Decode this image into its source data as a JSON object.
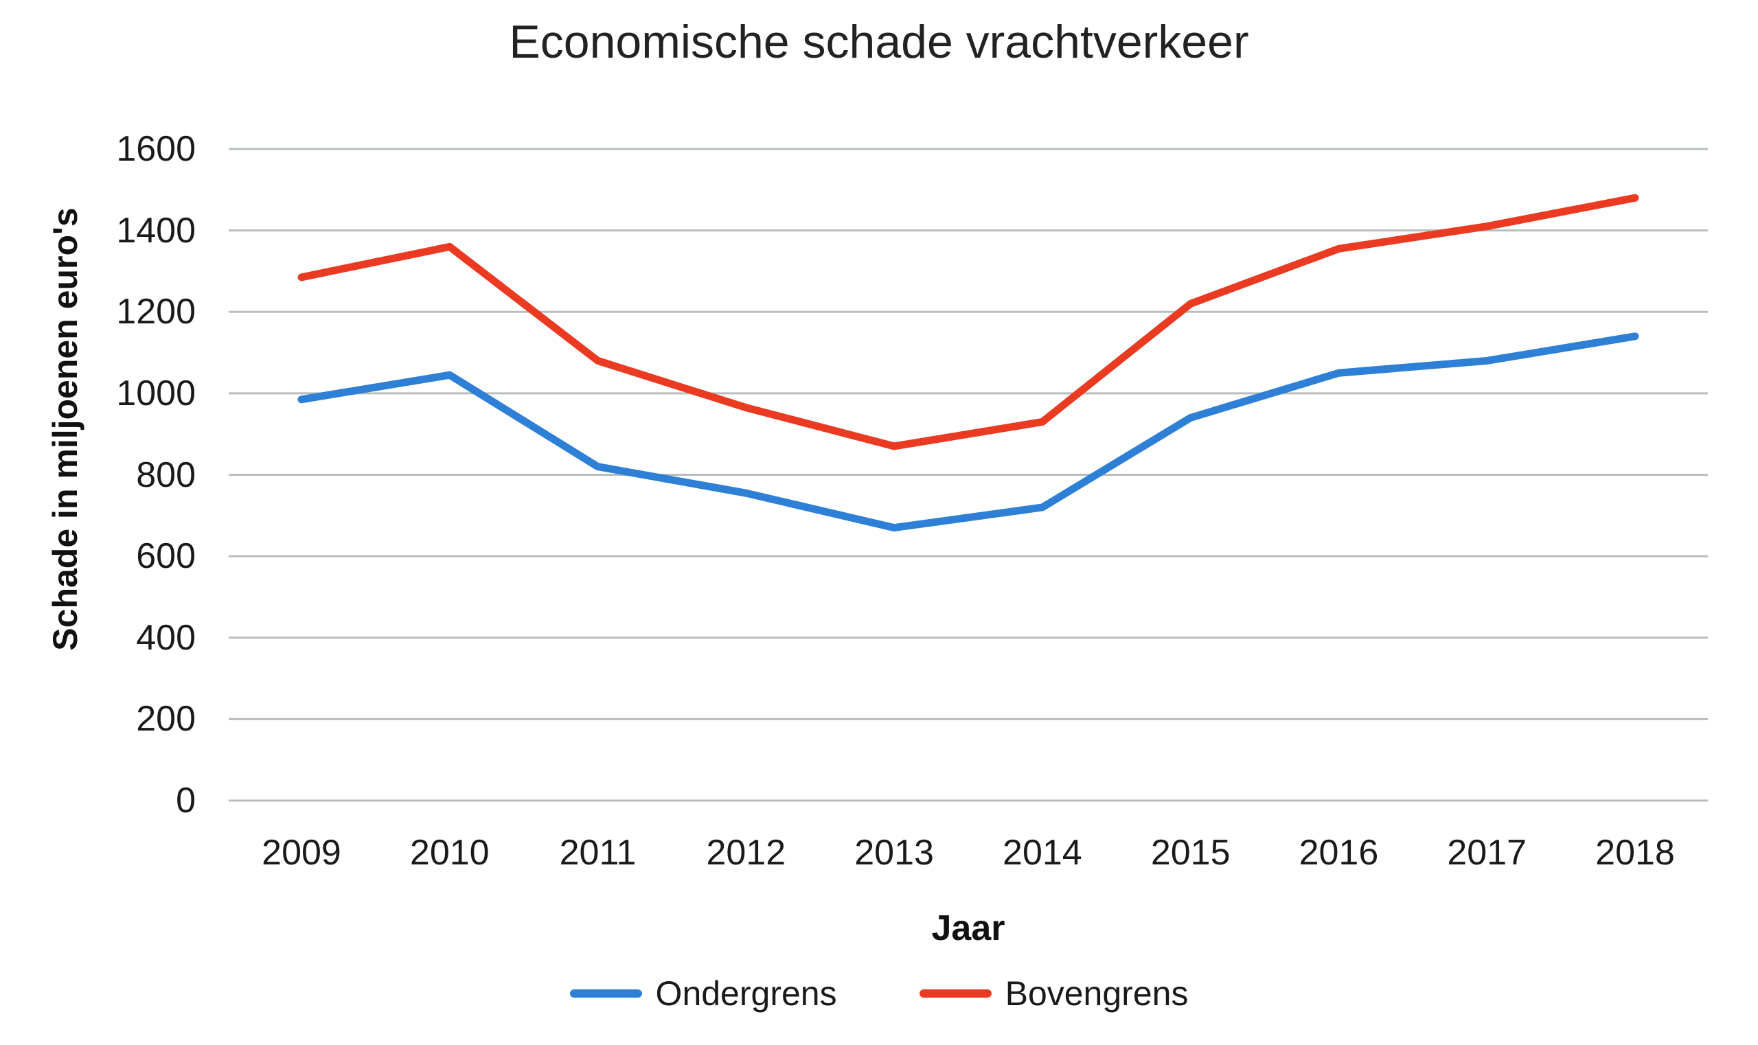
{
  "chart_data": {
    "type": "line",
    "title": "Economische schade vrachtverkeer",
    "xlabel": "Jaar",
    "ylabel": "Schade in miljoenen euro's",
    "categories": [
      "2009",
      "2010",
      "2011",
      "2012",
      "2013",
      "2014",
      "2015",
      "2016",
      "2017",
      "2018"
    ],
    "series": [
      {
        "name": "Ondergrens",
        "color": "#2e7fd6",
        "values": [
          985,
          1045,
          820,
          755,
          670,
          720,
          940,
          1050,
          1080,
          1140
        ]
      },
      {
        "name": "Bovengrens",
        "color": "#ea3b22",
        "values": [
          1285,
          1360,
          1080,
          965,
          870,
          930,
          1220,
          1355,
          1410,
          1480
        ]
      }
    ],
    "ylim": [
      0,
      1600
    ],
    "ytick_step": 200,
    "yticks": [
      0,
      200,
      400,
      600,
      800,
      1000,
      1200,
      1400,
      1600
    ],
    "grid": "horizontal",
    "grid_color": "#b7bebd",
    "legend_position": "bottom",
    "text_color": "#1a1a1a"
  }
}
